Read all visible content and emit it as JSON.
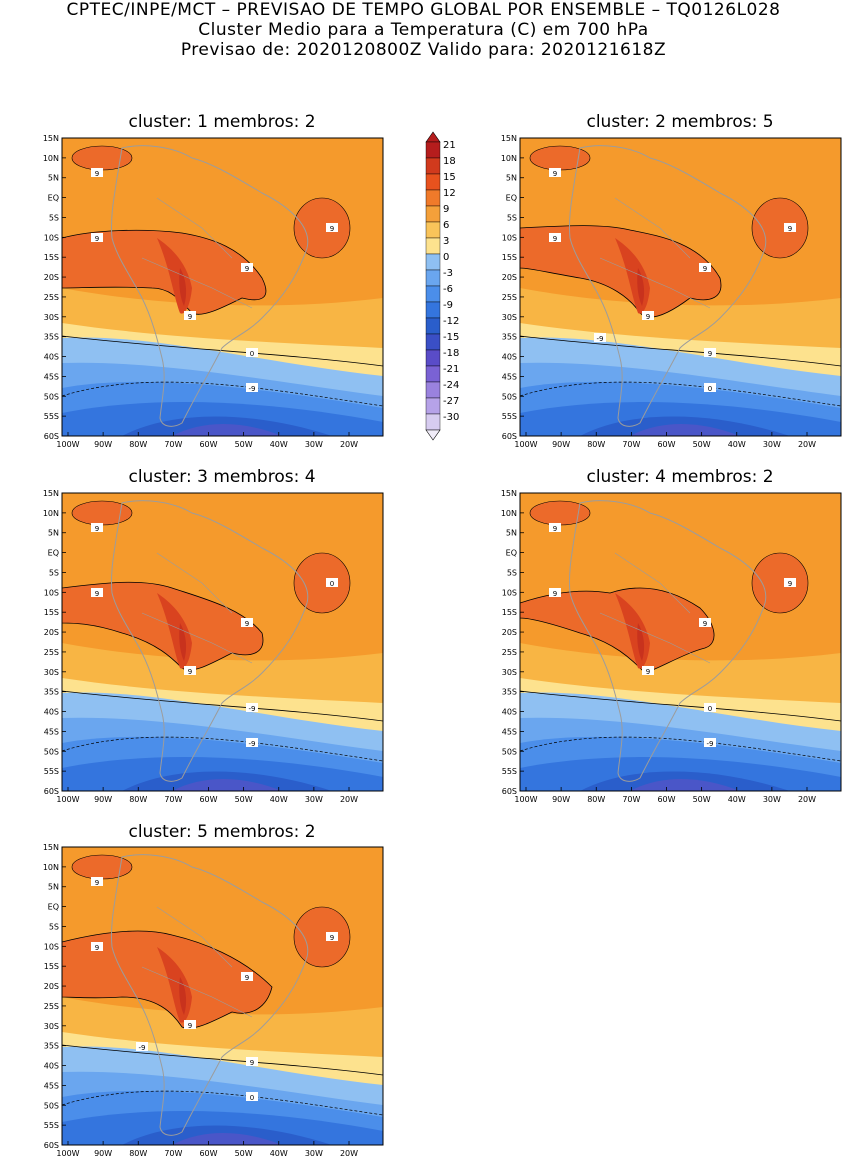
{
  "header": {
    "line1": "CPTEC/INPE/MCT – PREVISAO DE TEMPO GLOBAL POR ENSEMBLE – TQ0126L028",
    "line2": "Cluster Medio para a Temperatura (C) em 700 hPa",
    "line3": "Previsao de: 2020120800Z    Valido para: 2020121618Z"
  },
  "axes": {
    "lat_labels": [
      "15N",
      "10N",
      "5N",
      "EQ",
      "5S",
      "10S",
      "15S",
      "20S",
      "25S",
      "30S",
      "35S",
      "40S",
      "45S",
      "50S",
      "55S",
      "60S"
    ],
    "lon_labels": [
      "100W",
      "90W",
      "80W",
      "70W",
      "60W",
      "50W",
      "40W",
      "30W",
      "20W"
    ]
  },
  "colorbar": {
    "levels": [
      "21",
      "18",
      "15",
      "12",
      "9",
      "6",
      "3",
      "0",
      "-3",
      "-6",
      "-9",
      "-12",
      "-15",
      "-18",
      "-21",
      "-24",
      "-27",
      "-30"
    ],
    "colors": [
      "#b51d1d",
      "#d13a1d",
      "#e8521e",
      "#f07a2a",
      "#f4a03a",
      "#f9c45a",
      "#fde28e",
      "#8fc0f2",
      "#6aa6ef",
      "#4b8eea",
      "#3475de",
      "#2a5ecb",
      "#3a4fc6",
      "#5a4cc8",
      "#7a62d4",
      "#9a82de",
      "#b6a2e8",
      "#d7ccf0"
    ]
  },
  "maps": [
    {
      "title": "cluster: 1   membros: 2",
      "contour_labels": [
        "9",
        "9",
        "9",
        "9",
        "9",
        "0",
        "-9"
      ]
    },
    {
      "title": "cluster: 2   membros: 5",
      "contour_labels": [
        "9",
        "9",
        "9",
        "9",
        "9",
        "9",
        "0",
        "-9"
      ]
    },
    {
      "title": "cluster: 3   membros: 4",
      "contour_labels": [
        "9",
        "9",
        "9",
        "9",
        "0",
        "-9",
        "-9"
      ]
    },
    {
      "title": "cluster: 4   membros: 2",
      "contour_labels": [
        "9",
        "9",
        "9",
        "9",
        "9",
        "0",
        "-9"
      ]
    },
    {
      "title": "cluster: 5   membros: 2",
      "contour_labels": [
        "9",
        "9",
        "9",
        "9",
        "9",
        "9",
        "0",
        "-9"
      ]
    }
  ]
}
